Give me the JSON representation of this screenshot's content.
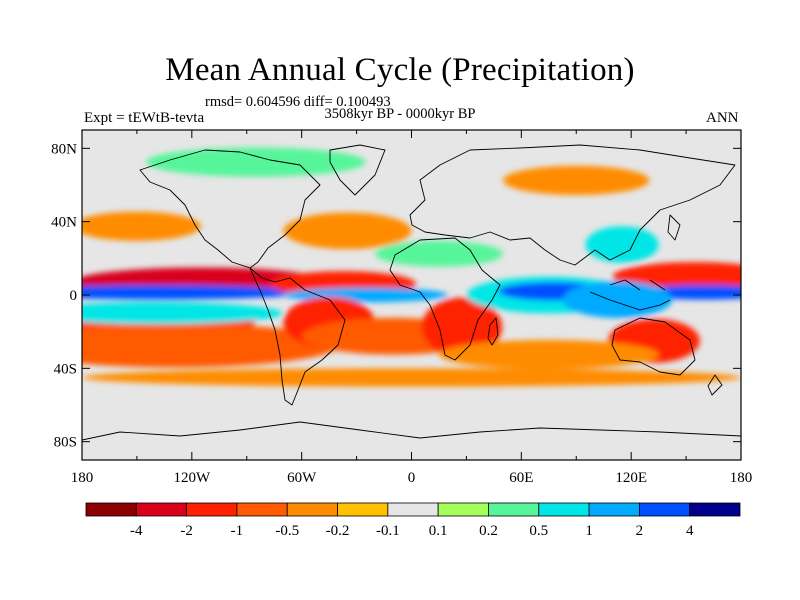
{
  "title": "Mean Annual Cycle (Precipitation)",
  "stats_line": "rmsd= 0.604596 diff= 0.100493",
  "period": "3508kyr BP - 0000kyr BP",
  "left_label": "Expt = tEWtB-tevta",
  "right_label": "ANN",
  "chart_data": {
    "type": "heatmap",
    "title": "Mean Annual Cycle (Precipitation)",
    "xlabel": "",
    "ylabel": "",
    "x_ticks": [
      "180",
      "120W",
      "60W",
      "0",
      "60E",
      "120E",
      "180"
    ],
    "y_ticks": [
      "80N",
      "40N",
      "0",
      "40S",
      "80S"
    ],
    "xlim": [
      -180,
      180
    ],
    "ylim": [
      -90,
      90
    ],
    "colorbar": {
      "boundaries": [
        "-4",
        "-2",
        "-1",
        "-0.5",
        "-0.2",
        "-0.1",
        "0.1",
        "0.2",
        "0.5",
        "1",
        "2",
        "4"
      ],
      "colors": [
        "#8b0000",
        "#d9001c",
        "#ff2000",
        "#ff5a00",
        "#ff8c00",
        "#ffc000",
        "#e6e6e6",
        "#a5ff5a",
        "#56f59a",
        "#00e6e6",
        "#00aaff",
        "#0050ff",
        "#00008c"
      ]
    },
    "regions": [
      {
        "id": "itcz-pac-red",
        "lon": [
          -150,
          -80
        ],
        "lat": [
          2,
          12
        ],
        "bin": 1,
        "rx": 70,
        "ry": 8
      },
      {
        "id": "itcz-pac-blue",
        "lon": [
          -180,
          -95
        ],
        "lat": [
          -2,
          5
        ],
        "bin": 11,
        "rx": 80,
        "ry": 4
      },
      {
        "id": "spcz-red",
        "lon": [
          -170,
          -110
        ],
        "lat": [
          -20,
          -8
        ],
        "bin": 2,
        "rx": 55,
        "ry": 9
      },
      {
        "id": "s-pac-orange",
        "lon": [
          -180,
          -80
        ],
        "lat": [
          -35,
          -20
        ],
        "bin": 3,
        "rx": 90,
        "ry": 12
      },
      {
        "id": "s-pac-cyan",
        "lon": [
          -180,
          -100
        ],
        "lat": [
          -14,
          -6
        ],
        "bin": 9,
        "rx": 70,
        "ry": 6
      },
      {
        "id": "atl-itcz-red",
        "lon": [
          -60,
          -15
        ],
        "lat": [
          2,
          10
        ],
        "bin": 2,
        "rx": 40,
        "ry": 7
      },
      {
        "id": "atl-blue",
        "lon": [
          -50,
          0
        ],
        "lat": [
          -3,
          3
        ],
        "bin": 10,
        "rx": 45,
        "ry": 4
      },
      {
        "id": "brazil-red",
        "lon": [
          -60,
          -30
        ],
        "lat": [
          -25,
          -5
        ],
        "bin": 2,
        "rx": 25,
        "ry": 14
      },
      {
        "id": "s-atl-orange",
        "lon": [
          -40,
          20
        ],
        "lat": [
          -30,
          -15
        ],
        "bin": 3,
        "rx": 50,
        "ry": 10
      },
      {
        "id": "africa-red",
        "lon": [
          10,
          45
        ],
        "lat": [
          -30,
          -5
        ],
        "bin": 2,
        "rx": 22,
        "ry": 16
      },
      {
        "id": "n-atl-orange",
        "lon": [
          -60,
          -10
        ],
        "lat": [
          25,
          45
        ],
        "bin": 4,
        "rx": 35,
        "ry": 10
      },
      {
        "id": "n-pac-orange",
        "lon": [
          -170,
          -130
        ],
        "lat": [
          30,
          45
        ],
        "bin": 4,
        "rx": 35,
        "ry": 8
      },
      {
        "id": "indian-cyan",
        "lon": [
          50,
          100
        ],
        "lat": [
          -10,
          10
        ],
        "bin": 9,
        "rx": 45,
        "ry": 10
      },
      {
        "id": "indian-blue",
        "lon": [
          60,
          95
        ],
        "lat": [
          -2,
          6
        ],
        "bin": 11,
        "rx": 30,
        "ry": 5
      },
      {
        "id": "w-pac-red",
        "lon": [
          130,
          180
        ],
        "lat": [
          5,
          15
        ],
        "bin": 2,
        "rx": 45,
        "ry": 8
      },
      {
        "id": "w-pac-blue",
        "lon": [
          140,
          180
        ],
        "lat": [
          -2,
          5
        ],
        "bin": 11,
        "rx": 40,
        "ry": 4
      },
      {
        "id": "maritime-blue",
        "lon": [
          95,
          130
        ],
        "lat": [
          -10,
          5
        ],
        "bin": 10,
        "rx": 30,
        "ry": 10
      },
      {
        "id": "australia-red",
        "lon": [
          115,
          150
        ],
        "lat": [
          -35,
          -15
        ],
        "bin": 2,
        "rx": 25,
        "ry": 12
      },
      {
        "id": "s-ind-orange",
        "lon": [
          40,
          110
        ],
        "lat": [
          -40,
          -25
        ],
        "bin": 4,
        "rx": 60,
        "ry": 8
      },
      {
        "id": "s-ocean-orange",
        "lon": [
          -180,
          180
        ],
        "lat": [
          -50,
          -40
        ],
        "bin": 4,
        "rx": 180,
        "ry": 5
      },
      {
        "id": "china-cyan",
        "lon": [
          100,
          130
        ],
        "lat": [
          20,
          35
        ],
        "bin": 9,
        "rx": 20,
        "ry": 10
      },
      {
        "id": "arctic-green",
        "lon": [
          -130,
          -40
        ],
        "lat": [
          65,
          80
        ],
        "bin": 8,
        "rx": 60,
        "ry": 8
      },
      {
        "id": "siberia-orange",
        "lon": [
          60,
          120
        ],
        "lat": [
          55,
          70
        ],
        "bin": 4,
        "rx": 40,
        "ry": 8
      },
      {
        "id": "sahara-green",
        "lon": [
          -10,
          40
        ],
        "lat": [
          15,
          30
        ],
        "bin": 8,
        "rx": 35,
        "ry": 7
      }
    ]
  }
}
